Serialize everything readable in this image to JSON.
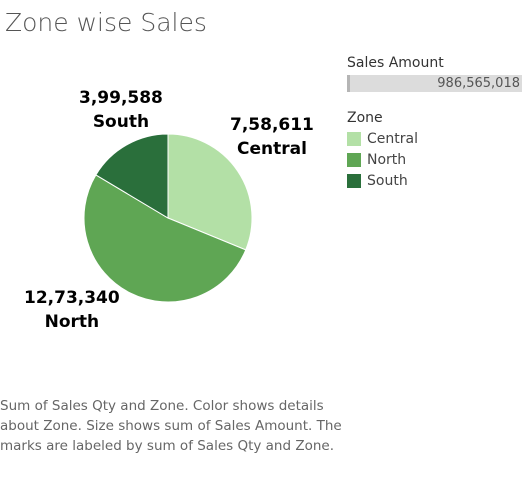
{
  "chart_data": {
    "type": "pie",
    "title": "Zone wise Sales",
    "slices": [
      {
        "name": "Central",
        "label": "7,58,611",
        "value": 758611,
        "color": "#b3e0a6"
      },
      {
        "name": "North",
        "label": "12,73,340",
        "value": 1273340,
        "color": "#5fa654"
      },
      {
        "name": "South",
        "label": "3,99,588",
        "value": 399588,
        "color": "#2a6f3b"
      }
    ],
    "size_legend": {
      "title": "Sales Amount",
      "value": "986,565,018"
    },
    "color_legend": {
      "title": "Zone",
      "items": [
        "Central",
        "North",
        "South"
      ]
    },
    "caption": "Sum of Sales Qty and Zone.  Color shows details about Zone.  Size shows sum of Sales Amount.  The marks are labeled by sum of Sales Qty and Zone."
  }
}
